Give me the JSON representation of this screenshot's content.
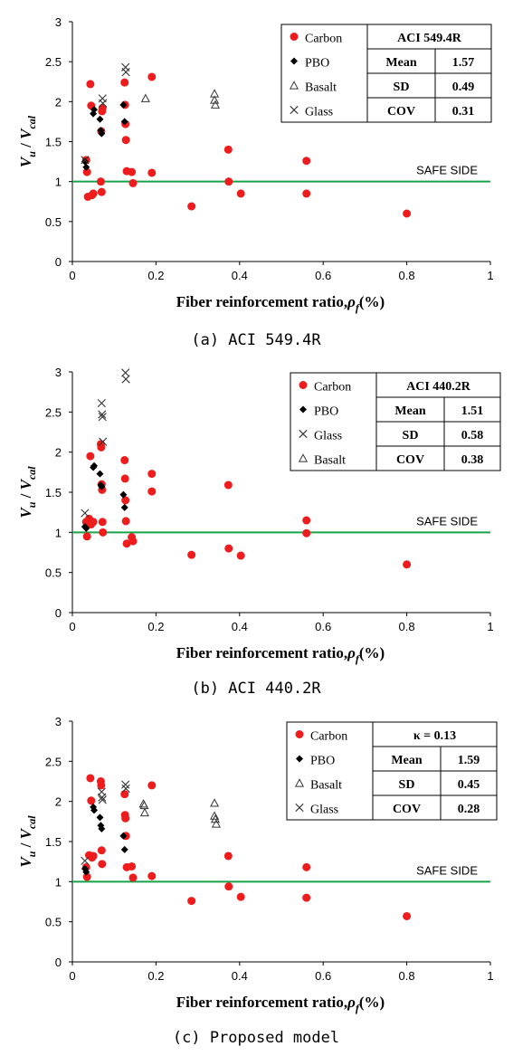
{
  "colors": {
    "carbon": "#ee1c1c",
    "safe_line": "#16a34a",
    "axis": "#000000"
  },
  "chart_data": [
    {
      "type": "scatter",
      "caption": "(a) ACI 549.4R",
      "xlabel": "Fiber reinforcement ratio,",
      "xlabel_symbol": "ρ",
      "xlabel_sub": "f",
      "xlabel_unit": "(%)",
      "ylabel": "Vu / Vcal",
      "xlim": [
        0,
        1
      ],
      "ylim": [
        0,
        3
      ],
      "xticks": [
        "0",
        "0.2",
        "0.4",
        "0.6",
        "0.8",
        "1"
      ],
      "yticks": [
        "0",
        "0.5",
        "1",
        "1.5",
        "2",
        "2.5",
        "3"
      ],
      "safe_line": {
        "y": 1,
        "label": "SAFE SIDE"
      },
      "legend": [
        "Carbon",
        "PBO",
        "Basalt",
        "Glass"
      ],
      "stats": {
        "title": "ACI 549.4R",
        "rows": [
          [
            "Mean",
            "1.57"
          ],
          [
            "SD",
            "0.49"
          ],
          [
            "COV",
            "0.31"
          ]
        ]
      },
      "series": [
        {
          "name": "Carbon",
          "marker": "circle",
          "points": [
            [
              0.033,
              1.27
            ],
            [
              0.035,
              1.12
            ],
            [
              0.037,
              0.81
            ],
            [
              0.043,
              2.22
            ],
            [
              0.045,
              1.95
            ],
            [
              0.047,
              0.83
            ],
            [
              0.05,
              0.85
            ],
            [
              0.068,
              1.0
            ],
            [
              0.069,
              1.63
            ],
            [
              0.07,
              0.87
            ],
            [
              0.071,
              1.88
            ],
            [
              0.072,
              1.92
            ],
            [
              0.125,
              2.24
            ],
            [
              0.126,
              1.96
            ],
            [
              0.127,
              1.72
            ],
            [
              0.128,
              1.52
            ],
            [
              0.13,
              1.13
            ],
            [
              0.142,
              1.12
            ],
            [
              0.145,
              0.98
            ],
            [
              0.19,
              2.31
            ],
            [
              0.19,
              1.11
            ],
            [
              0.285,
              0.69
            ],
            [
              0.373,
              1.4
            ],
            [
              0.374,
              1.0
            ],
            [
              0.403,
              0.85
            ],
            [
              0.56,
              1.26
            ],
            [
              0.56,
              0.85
            ],
            [
              0.8,
              0.6
            ]
          ]
        },
        {
          "name": "PBO",
          "marker": "diamond",
          "points": [
            [
              0.03,
              1.25
            ],
            [
              0.033,
              1.18
            ],
            [
              0.05,
              1.85
            ],
            [
              0.052,
              1.9
            ],
            [
              0.066,
              1.78
            ],
            [
              0.068,
              1.64
            ],
            [
              0.07,
              1.6
            ],
            [
              0.122,
              1.96
            ],
            [
              0.125,
              1.75
            ]
          ]
        },
        {
          "name": "Basalt",
          "marker": "triangle",
          "points": [
            [
              0.175,
              2.04
            ],
            [
              0.34,
              2.1
            ],
            [
              0.34,
              2.02
            ],
            [
              0.342,
              1.96
            ]
          ]
        },
        {
          "name": "Glass",
          "marker": "cross",
          "points": [
            [
              0.03,
              1.27
            ],
            [
              0.072,
              2.04
            ],
            [
              0.073,
              1.98
            ],
            [
              0.127,
              2.43
            ],
            [
              0.128,
              2.37
            ]
          ]
        }
      ]
    },
    {
      "type": "scatter",
      "caption": "(b) ACI 440.2R",
      "xlabel": "Fiber reinforcement ratio,",
      "xlabel_symbol": "ρ",
      "xlabel_sub": "f",
      "xlabel_unit": "(%)",
      "ylabel": "Vu / Vcal",
      "xlim": [
        0,
        1
      ],
      "ylim": [
        0,
        3
      ],
      "xticks": [
        "0",
        "0.2",
        "0.4",
        "0.6",
        "0.8",
        "1"
      ],
      "yticks": [
        "0",
        "0.5",
        "1",
        "1.5",
        "2",
        "2.5",
        "3"
      ],
      "safe_line": {
        "y": 1,
        "label": "SAFE SIDE"
      },
      "legend": [
        "Carbon",
        "PBO",
        "Glass",
        "Basalt"
      ],
      "stats": {
        "title": "ACI 440.2R",
        "rows": [
          [
            "Mean",
            "1.51"
          ],
          [
            "SD",
            "0.58"
          ],
          [
            "COV",
            "0.38"
          ]
        ]
      },
      "series": [
        {
          "name": "Carbon",
          "marker": "circle",
          "points": [
            [
              0.033,
              1.13
            ],
            [
              0.035,
              0.95
            ],
            [
              0.04,
              1.17
            ],
            [
              0.043,
              1.95
            ],
            [
              0.045,
              1.1
            ],
            [
              0.05,
              1.13
            ],
            [
              0.068,
              2.1
            ],
            [
              0.069,
              2.06
            ],
            [
              0.07,
              1.6
            ],
            [
              0.071,
              1.53
            ],
            [
              0.072,
              1.13
            ],
            [
              0.073,
              1.0
            ],
            [
              0.125,
              1.9
            ],
            [
              0.126,
              1.67
            ],
            [
              0.127,
              1.4
            ],
            [
              0.128,
              1.14
            ],
            [
              0.13,
              0.86
            ],
            [
              0.142,
              0.94
            ],
            [
              0.145,
              0.89
            ],
            [
              0.19,
              1.73
            ],
            [
              0.19,
              1.51
            ],
            [
              0.285,
              0.72
            ],
            [
              0.373,
              1.59
            ],
            [
              0.374,
              0.8
            ],
            [
              0.403,
              0.71
            ],
            [
              0.56,
              1.15
            ],
            [
              0.56,
              0.99
            ],
            [
              0.8,
              0.6
            ]
          ]
        },
        {
          "name": "PBO",
          "marker": "diamond",
          "points": [
            [
              0.03,
              1.07
            ],
            [
              0.033,
              1.05
            ],
            [
              0.05,
              1.81
            ],
            [
              0.052,
              1.83
            ],
            [
              0.066,
              1.73
            ],
            [
              0.068,
              1.59
            ],
            [
              0.07,
              1.57
            ],
            [
              0.122,
              1.47
            ],
            [
              0.125,
              1.31
            ]
          ]
        },
        {
          "name": "Glass",
          "marker": "cross",
          "points": [
            [
              0.03,
              1.24
            ],
            [
              0.07,
              2.61
            ],
            [
              0.071,
              2.47
            ],
            [
              0.072,
              2.44
            ],
            [
              0.073,
              2.13
            ],
            [
              0.127,
              2.99
            ],
            [
              0.128,
              2.91
            ]
          ]
        },
        {
          "name": "Basalt",
          "marker": "triangle",
          "points": []
        }
      ]
    },
    {
      "type": "scatter",
      "caption": "(c) Proposed model",
      "xlabel": "Fiber reinforcement ratio,",
      "xlabel_symbol": "ρ",
      "xlabel_sub": "f",
      "xlabel_unit": "(%)",
      "ylabel": "Vu / Vcal",
      "xlim": [
        0,
        1
      ],
      "ylim": [
        0,
        3
      ],
      "xticks": [
        "0",
        "0.2",
        "0.4",
        "0.6",
        "0.8",
        "1"
      ],
      "yticks": [
        "0",
        "0.5",
        "1",
        "1.5",
        "2",
        "2.5",
        "3"
      ],
      "safe_line": {
        "y": 1,
        "label": "SAFE SIDE"
      },
      "legend": [
        "Carbon",
        "PBO",
        "Basalt",
        "Glass"
      ],
      "stats": {
        "title": "κ = 0.13",
        "rows": [
          [
            "Mean",
            "1.59"
          ],
          [
            "SD",
            "0.45"
          ],
          [
            "COV",
            "0.28"
          ]
        ]
      },
      "series": [
        {
          "name": "Carbon",
          "marker": "circle",
          "points": [
            [
              0.033,
              1.18
            ],
            [
              0.035,
              1.06
            ],
            [
              0.04,
              1.33
            ],
            [
              0.043,
              2.29
            ],
            [
              0.045,
              2.01
            ],
            [
              0.047,
              1.3
            ],
            [
              0.05,
              1.32
            ],
            [
              0.068,
              2.25
            ],
            [
              0.069,
              2.2
            ],
            [
              0.07,
              1.39
            ],
            [
              0.071,
              1.22
            ],
            [
              0.125,
              2.09
            ],
            [
              0.126,
              1.83
            ],
            [
              0.127,
              1.79
            ],
            [
              0.128,
              1.57
            ],
            [
              0.13,
              1.18
            ],
            [
              0.142,
              1.19
            ],
            [
              0.145,
              1.05
            ],
            [
              0.19,
              2.2
            ],
            [
              0.19,
              1.07
            ],
            [
              0.285,
              0.76
            ],
            [
              0.373,
              1.32
            ],
            [
              0.374,
              0.94
            ],
            [
              0.403,
              0.81
            ],
            [
              0.56,
              1.18
            ],
            [
              0.56,
              0.8
            ],
            [
              0.8,
              0.57
            ]
          ]
        },
        {
          "name": "PBO",
          "marker": "diamond",
          "points": [
            [
              0.03,
              1.16
            ],
            [
              0.033,
              1.12
            ],
            [
              0.05,
              1.93
            ],
            [
              0.052,
              1.89
            ],
            [
              0.066,
              1.8
            ],
            [
              0.068,
              1.7
            ],
            [
              0.07,
              1.66
            ],
            [
              0.122,
              1.57
            ],
            [
              0.125,
              1.4
            ]
          ]
        },
        {
          "name": "Basalt",
          "marker": "triangle",
          "points": [
            [
              0.17,
              1.97
            ],
            [
              0.172,
              1.95
            ],
            [
              0.173,
              1.86
            ],
            [
              0.34,
              1.98
            ],
            [
              0.34,
              1.82
            ],
            [
              0.342,
              1.78
            ],
            [
              0.344,
              1.72
            ]
          ]
        },
        {
          "name": "Glass",
          "marker": "cross",
          "points": [
            [
              0.03,
              1.26
            ],
            [
              0.07,
              2.12
            ],
            [
              0.071,
              2.05
            ],
            [
              0.072,
              2.02
            ],
            [
              0.127,
              2.21
            ],
            [
              0.128,
              2.16
            ]
          ]
        }
      ]
    }
  ]
}
